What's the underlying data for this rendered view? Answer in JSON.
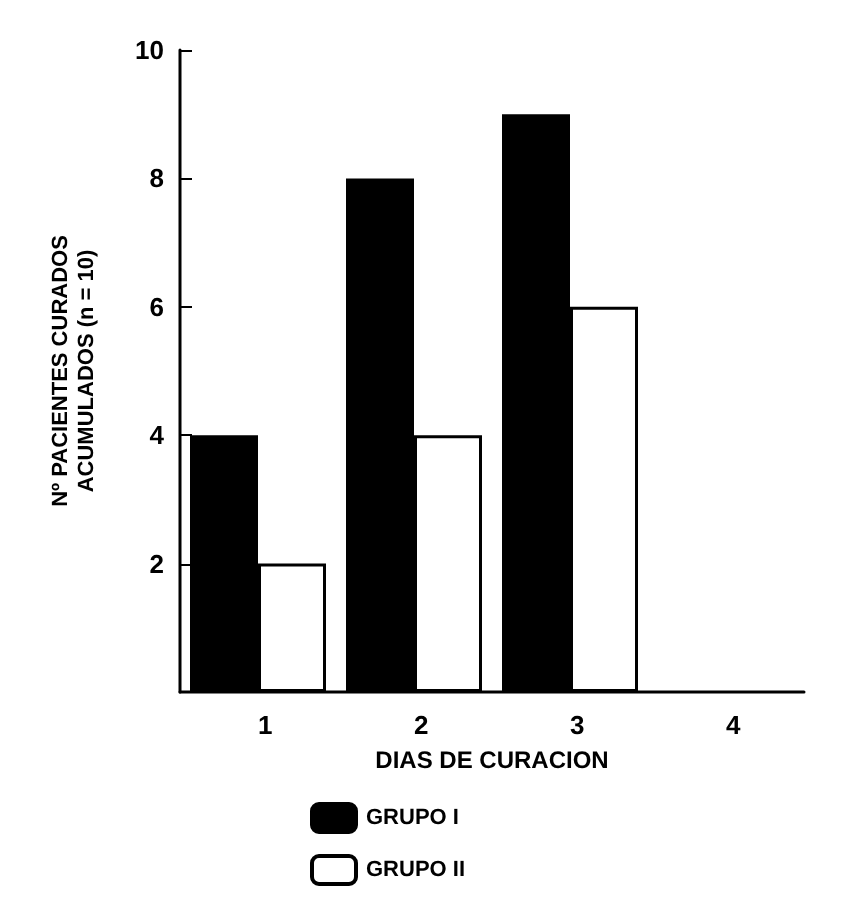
{
  "chart_data": {
    "type": "bar",
    "xlabel": "DIAS DE CURACION",
    "ylabel": "Nº PACIENTES CURADOS\nACUMULADOS (n = 10)",
    "categories": [
      "1",
      "2",
      "3",
      "4"
    ],
    "series": [
      {
        "name": "GRUPO I",
        "color": "#000000",
        "values": [
          4,
          8,
          9,
          null
        ]
      },
      {
        "name": "GRUPO II",
        "color": "#ffffff",
        "values": [
          2,
          4,
          6,
          null
        ]
      }
    ],
    "ylim": [
      0,
      10
    ],
    "yticks": [
      2,
      4,
      6,
      8,
      10
    ],
    "grid": false,
    "legend": "bottom"
  }
}
